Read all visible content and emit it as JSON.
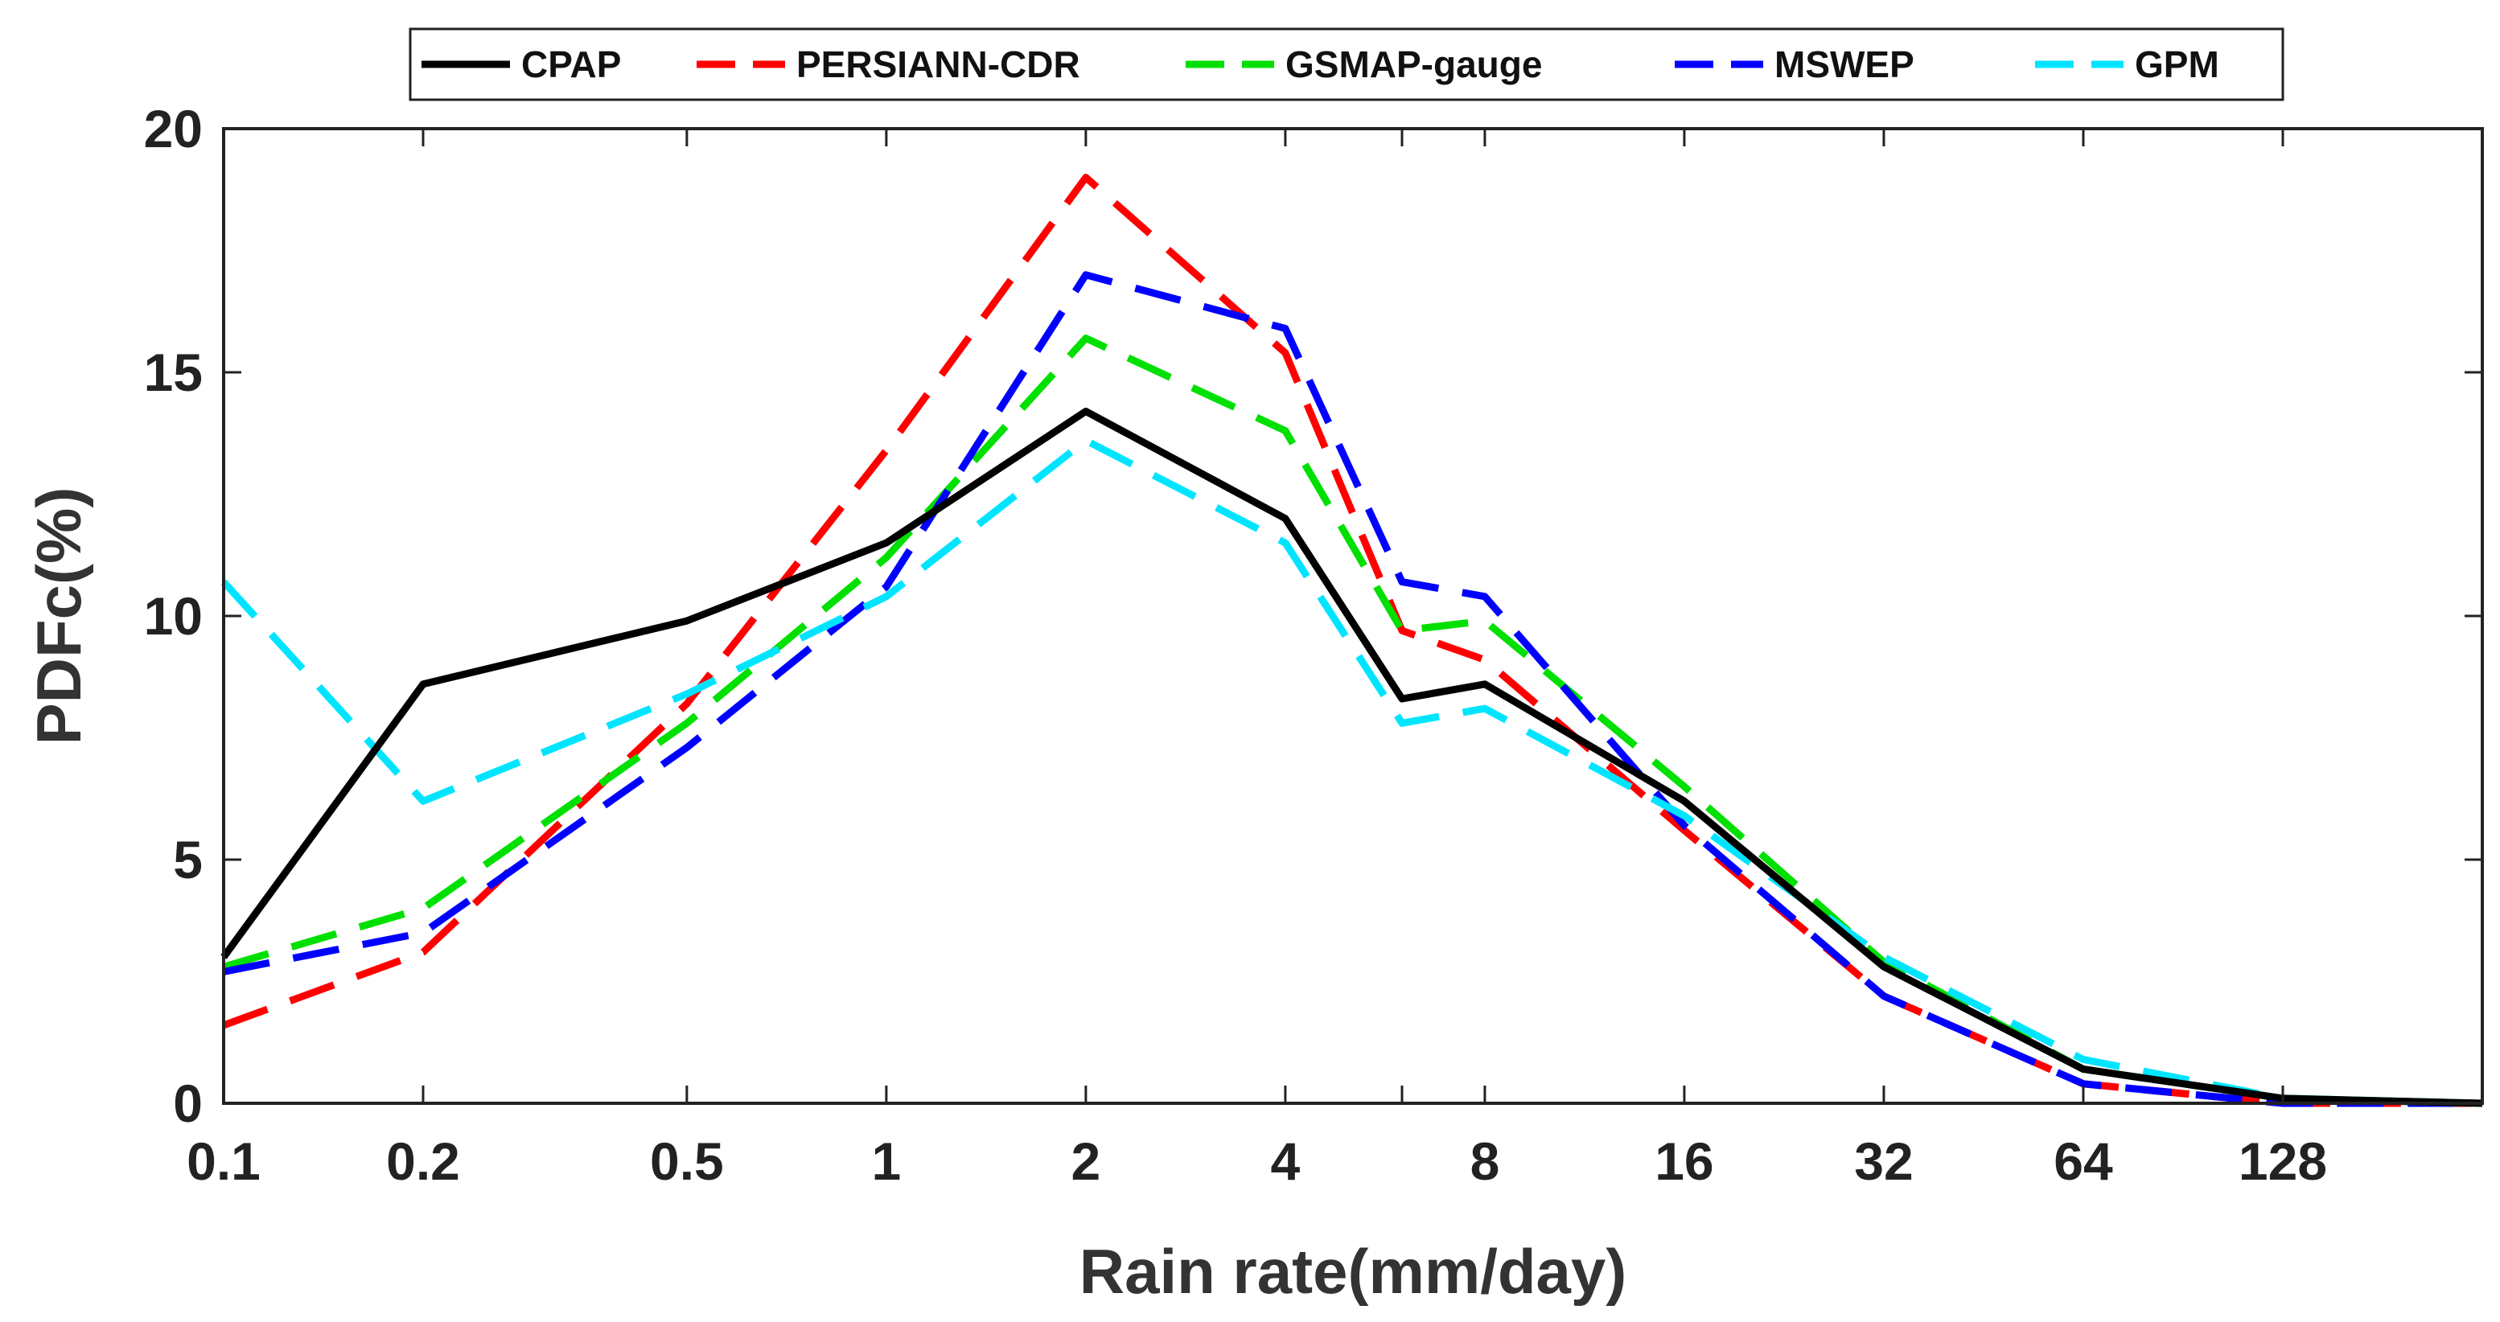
{
  "chart_data": {
    "type": "line",
    "title": "",
    "xlabel": "Rain rate(mm/day)",
    "ylabel": "PDFc(%)",
    "x_scale": "log2",
    "x": [
      0.1,
      0.2,
      0.5,
      1,
      2,
      4,
      6,
      8,
      16,
      32,
      64,
      128,
      256
    ],
    "xlim": [
      0.1,
      256
    ],
    "ylim": [
      0,
      20
    ],
    "x_ticks": [
      0.1,
      0.2,
      0.5,
      1,
      2,
      4,
      8,
      16,
      32,
      64,
      128
    ],
    "x_tick_labels": [
      "0.1",
      "0.2",
      "0.5",
      "1",
      "2",
      "4",
      "8",
      "16",
      "32",
      "64",
      "128"
    ],
    "y_ticks": [
      0,
      5,
      10,
      15,
      20
    ],
    "y_tick_labels": [
      "0",
      "5",
      "10",
      "15",
      "20"
    ],
    "grid": false,
    "legend_position": "top",
    "series": [
      {
        "name": "CPAP",
        "color": "#000000",
        "dashed": false,
        "values": [
          3.0,
          8.6,
          9.9,
          11.5,
          14.2,
          12.0,
          8.3,
          8.6,
          6.2,
          2.8,
          0.7,
          0.1,
          0.0
        ]
      },
      {
        "name": "PERSIANN-CDR",
        "color": "#ff0000",
        "dashed": true,
        "values": [
          1.6,
          3.1,
          8.2,
          13.4,
          19.0,
          15.4,
          9.7,
          9.1,
          5.6,
          2.2,
          0.4,
          0.0,
          0.0
        ]
      },
      {
        "name": "GSMAP-gauge",
        "color": "#00e000",
        "dashed": true,
        "values": [
          2.8,
          4.0,
          7.8,
          11.2,
          15.7,
          13.8,
          9.7,
          9.9,
          6.5,
          2.9,
          0.7,
          0.1,
          0.0
        ]
      },
      {
        "name": "MSWEP",
        "color": "#0000ff",
        "dashed": true,
        "values": [
          2.7,
          3.5,
          7.3,
          10.6,
          17.0,
          15.9,
          10.7,
          10.4,
          5.7,
          2.2,
          0.4,
          0.0,
          0.0
        ]
      },
      {
        "name": "GPM",
        "color": "#00e5ff",
        "dashed": true,
        "values": [
          10.7,
          6.2,
          8.4,
          10.4,
          13.6,
          11.5,
          7.8,
          8.1,
          5.9,
          3.0,
          0.9,
          0.1,
          0.0
        ]
      }
    ]
  }
}
